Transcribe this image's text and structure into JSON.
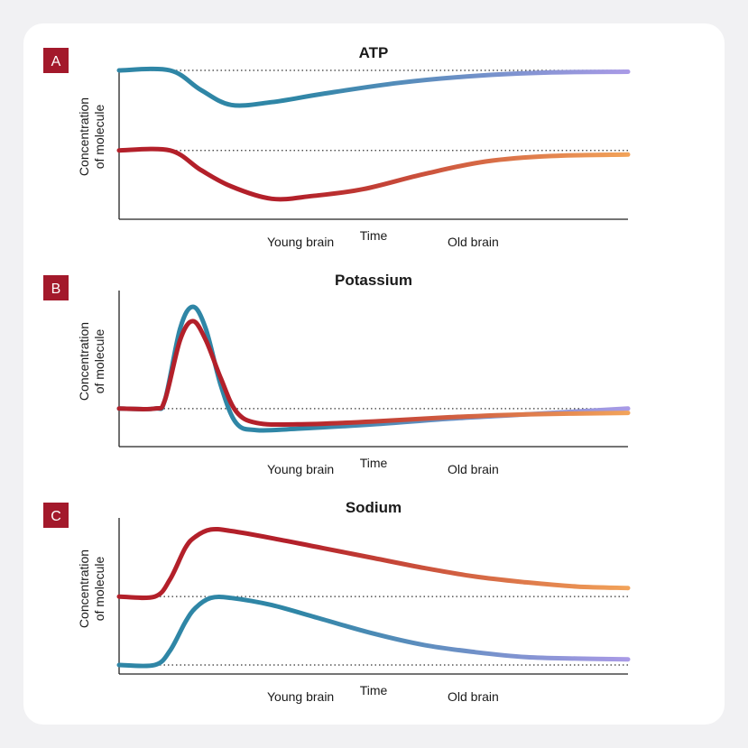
{
  "colors": {
    "page_bg": "#f1f1f3",
    "card_bg": "#ffffff",
    "badge": "#a3192b",
    "young_start": "#2f86a6",
    "young_end": "#a99ae6",
    "old_start": "#b3202a",
    "old_end": "#f2a35a",
    "axis": "#222222",
    "reference_line": "#333333"
  },
  "chart_data": [
    {
      "type": "line",
      "panel_label": "A",
      "title": "ATP",
      "xlabel": "Time",
      "ylabel_lines": [
        "Concentration",
        "of molecule"
      ],
      "xlim": [
        0,
        100
      ],
      "ylim": [
        0,
        100
      ],
      "baselines": [
        100,
        42
      ],
      "legend": [
        "Young brain",
        "Old brain"
      ],
      "series": [
        {
          "name": "Young brain",
          "x": [
            0,
            10,
            16,
            22,
            30,
            40,
            55,
            70,
            85,
            100
          ],
          "y": [
            100,
            100,
            86,
            75,
            77,
            83,
            91,
            96,
            98.5,
            99
          ]
        },
        {
          "name": "Old brain",
          "x": [
            0,
            10,
            16,
            22,
            30,
            38,
            48,
            60,
            72,
            85,
            100
          ],
          "y": [
            42,
            42,
            28,
            16,
            7,
            9,
            14,
            25,
            34,
            38,
            39
          ]
        }
      ]
    },
    {
      "type": "line",
      "panel_label": "B",
      "title": "Potassium",
      "xlabel": "Time",
      "ylabel_lines": [
        "Concentration",
        "of molecule"
      ],
      "xlim": [
        0,
        100
      ],
      "ylim": [
        0,
        100
      ],
      "baselines": [
        24
      ],
      "legend": [
        "Young brain",
        "Old brain"
      ],
      "series": [
        {
          "name": "Young brain",
          "x": [
            0,
            7,
            9,
            12,
            14.5,
            17,
            20,
            23,
            27,
            35,
            50,
            65,
            80,
            100
          ],
          "y": [
            24,
            24,
            30,
            80,
            95,
            80,
            40,
            14,
            9,
            10,
            13,
            17,
            20,
            24
          ]
        },
        {
          "name": "Old brain",
          "x": [
            0,
            7,
            9,
            12,
            14.5,
            17,
            20,
            23,
            27,
            35,
            50,
            65,
            80,
            100
          ],
          "y": [
            24,
            24,
            30,
            72,
            85,
            72,
            45,
            22,
            14,
            13,
            15,
            18,
            20,
            21
          ]
        }
      ]
    },
    {
      "type": "line",
      "panel_label": "C",
      "title": "Sodium",
      "xlabel": "Time",
      "ylabel_lines": [
        "Concentration",
        "of molecule"
      ],
      "xlim": [
        0,
        100
      ],
      "ylim": [
        0,
        100
      ],
      "baselines": [
        48,
        0
      ],
      "legend": [
        "Young brain",
        "Old brain"
      ],
      "series": [
        {
          "name": "Young brain",
          "x": [
            0,
            7,
            10,
            13,
            15,
            18,
            22,
            30,
            40,
            50,
            60,
            70,
            80,
            90,
            100
          ],
          "y": [
            0,
            0,
            10,
            30,
            40,
            47,
            47,
            42,
            32,
            22,
            14,
            9,
            5.5,
            4.5,
            4
          ]
        },
        {
          "name": "Old brain",
          "x": [
            0,
            7,
            10,
            13,
            15,
            18,
            22,
            30,
            40,
            50,
            60,
            70,
            80,
            90,
            100
          ],
          "y": [
            48,
            48,
            60,
            82,
            90,
            95,
            94,
            89,
            82,
            75,
            68,
            62,
            58,
            55,
            54
          ]
        }
      ]
    }
  ]
}
